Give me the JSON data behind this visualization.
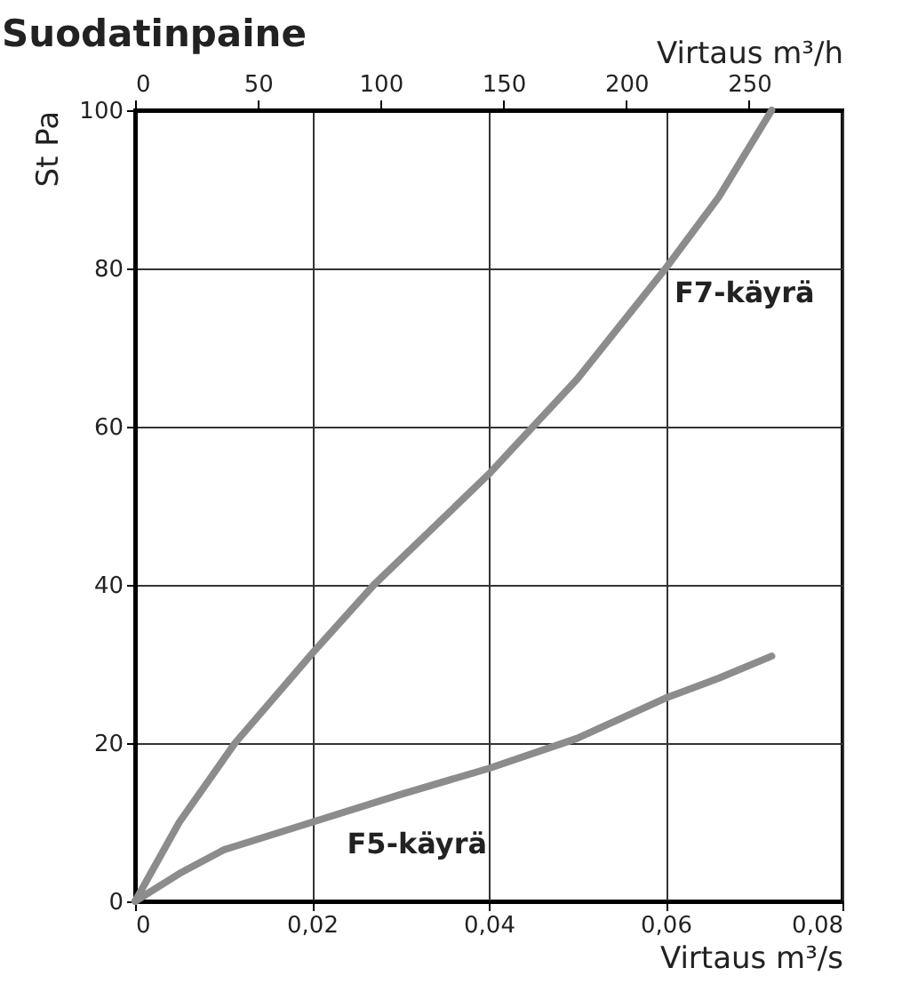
{
  "chart_data": {
    "type": "line",
    "title": "Suodatinpaine",
    "xlabel": "Virtaus m³/s",
    "x2label": "Virtaus m³/h",
    "ylabel": "St Pa",
    "xlim": [
      0,
      0.08
    ],
    "xticks": [
      0,
      {
        "value": 0.02,
        "label": "0,02"
      },
      {
        "value": 0.04,
        "label": "0,04"
      },
      {
        "value": 0.06,
        "label": "0,06"
      },
      {
        "value": 0.08,
        "label": "0,08"
      }
    ],
    "x2lim": [
      0,
      288
    ],
    "x2ticks": [
      0,
      50,
      100,
      150,
      200,
      250
    ],
    "ylim": [
      0,
      100
    ],
    "yticks": [
      0,
      20,
      40,
      60,
      80,
      100
    ],
    "grid": true,
    "marker": "none",
    "line_style": "solid",
    "series": [
      {
        "name": "F7-käyrä",
        "color": "#8c8c8c",
        "x": [
          0,
          0.005,
          0.0113,
          0.02,
          0.027,
          0.04,
          0.05,
          0.06,
          0.066,
          0.072
        ],
        "values": [
          0,
          10,
          20,
          31.3,
          40,
          54,
          66,
          80,
          89,
          100
        ]
      },
      {
        "name": "F5-käyrä",
        "color": "#8c8c8c",
        "x": [
          0,
          0.005,
          0.01,
          0.02,
          0.03,
          0.04,
          0.05,
          0.06,
          0.066,
          0.072
        ],
        "values": [
          0,
          3.5,
          6.5,
          10,
          13.5,
          16.8,
          20.6,
          25.7,
          28.2,
          31
        ]
      }
    ]
  }
}
